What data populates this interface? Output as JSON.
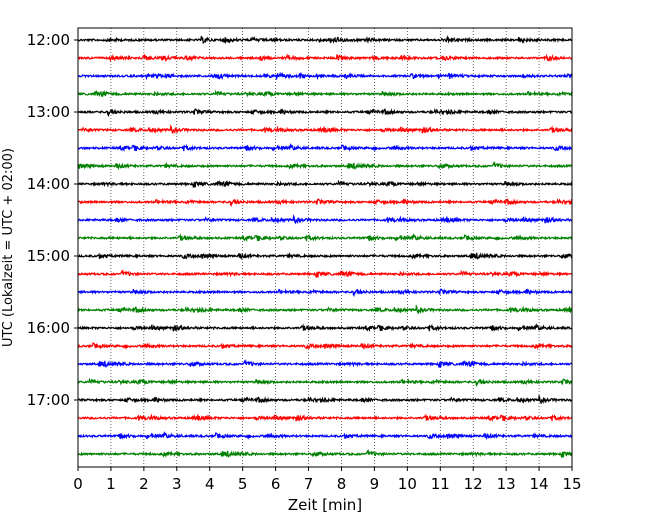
{
  "chart_data": {
    "type": "line",
    "title": "",
    "xlabel": "Zeit  [min]",
    "ylabel": "UTC (Lokalzeit = UTC + 02:00)",
    "xlim": [
      0,
      15
    ],
    "x_ticks": [
      "0",
      "1",
      "2",
      "3",
      "4",
      "5",
      "6",
      "7",
      "8",
      "9",
      "10",
      "11",
      "12",
      "13",
      "14",
      "15"
    ],
    "y_tick_labels": [
      "12:00",
      "13:00",
      "14:00",
      "15:00",
      "16:00",
      "17:00"
    ],
    "grid": "vertical dotted",
    "colors": [
      "#000000",
      "#ff0000",
      "#0000ff",
      "#008000"
    ],
    "traces": [
      {
        "start": "12:00",
        "color": "#000000"
      },
      {
        "start": "12:15",
        "color": "#ff0000"
      },
      {
        "start": "12:30",
        "color": "#0000ff"
      },
      {
        "start": "12:45",
        "color": "#008000"
      },
      {
        "start": "13:00",
        "color": "#000000"
      },
      {
        "start": "13:15",
        "color": "#ff0000"
      },
      {
        "start": "13:30",
        "color": "#0000ff"
      },
      {
        "start": "13:45",
        "color": "#008000"
      },
      {
        "start": "14:00",
        "color": "#000000"
      },
      {
        "start": "14:15",
        "color": "#ff0000"
      },
      {
        "start": "14:30",
        "color": "#0000ff"
      },
      {
        "start": "14:45",
        "color": "#008000"
      },
      {
        "start": "15:00",
        "color": "#000000"
      },
      {
        "start": "15:15",
        "color": "#ff0000"
      },
      {
        "start": "15:30",
        "color": "#0000ff"
      },
      {
        "start": "15:45",
        "color": "#008000"
      },
      {
        "start": "16:00",
        "color": "#000000"
      },
      {
        "start": "16:15",
        "color": "#ff0000"
      },
      {
        "start": "16:30",
        "color": "#0000ff"
      },
      {
        "start": "16:45",
        "color": "#008000"
      },
      {
        "start": "17:00",
        "color": "#000000"
      },
      {
        "start": "17:15",
        "color": "#ff0000"
      },
      {
        "start": "17:30",
        "color": "#0000ff"
      },
      {
        "start": "17:45",
        "color": "#008000"
      }
    ]
  }
}
